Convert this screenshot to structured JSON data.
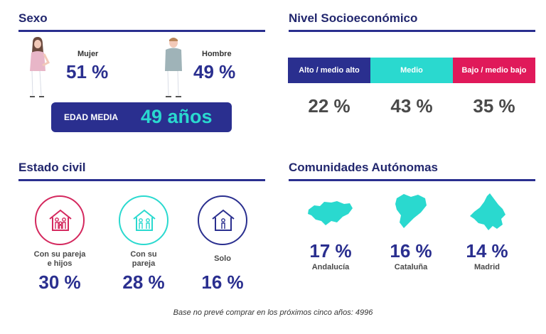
{
  "sexo": {
    "title": "Sexo",
    "mujer": {
      "label": "Mujer",
      "value": "51 %"
    },
    "hombre": {
      "label": "Hombre",
      "value": "49 %"
    },
    "edad_media": {
      "label": "EDAD MEDIA",
      "value": "49 años"
    }
  },
  "nse": {
    "title": "Nivel Socioeconómico",
    "segments": [
      {
        "label": "Alto / medio alto",
        "value": "22 %",
        "color": "#2a2f8f"
      },
      {
        "label": "Medio",
        "value": "43 %",
        "color": "#2ad9cf"
      },
      {
        "label": "Bajo / medio bajo",
        "value": "35 %",
        "color": "#e0195a"
      }
    ]
  },
  "estado_civil": {
    "title": "Estado civil",
    "items": [
      {
        "label_line1": "Con su pareja",
        "label_line2": "e hijos",
        "value": "30 %",
        "color": "#d4285e",
        "icon": "family-house-icon"
      },
      {
        "label_line1": "Con su",
        "label_line2": "pareja",
        "value": "28 %",
        "color": "#2ad9cf",
        "icon": "couple-house-icon"
      },
      {
        "label_line1": "Solo",
        "label_line2": "",
        "value": "16 %",
        "color": "#2a2f8f",
        "icon": "single-house-icon"
      }
    ]
  },
  "comunidades": {
    "title": "Comunidades Autónomas",
    "items": [
      {
        "name": "Andalucía",
        "value": "17 %",
        "icon": "andalucia-map-icon"
      },
      {
        "name": "Cataluña",
        "value": "16 %",
        "icon": "cataluna-map-icon"
      },
      {
        "name": "Madrid",
        "value": "14 %",
        "icon": "madrid-map-icon"
      }
    ],
    "color": "#2ad9cf"
  },
  "footnote": "Base no prevé comprar en los próximos cinco años: 4996"
}
